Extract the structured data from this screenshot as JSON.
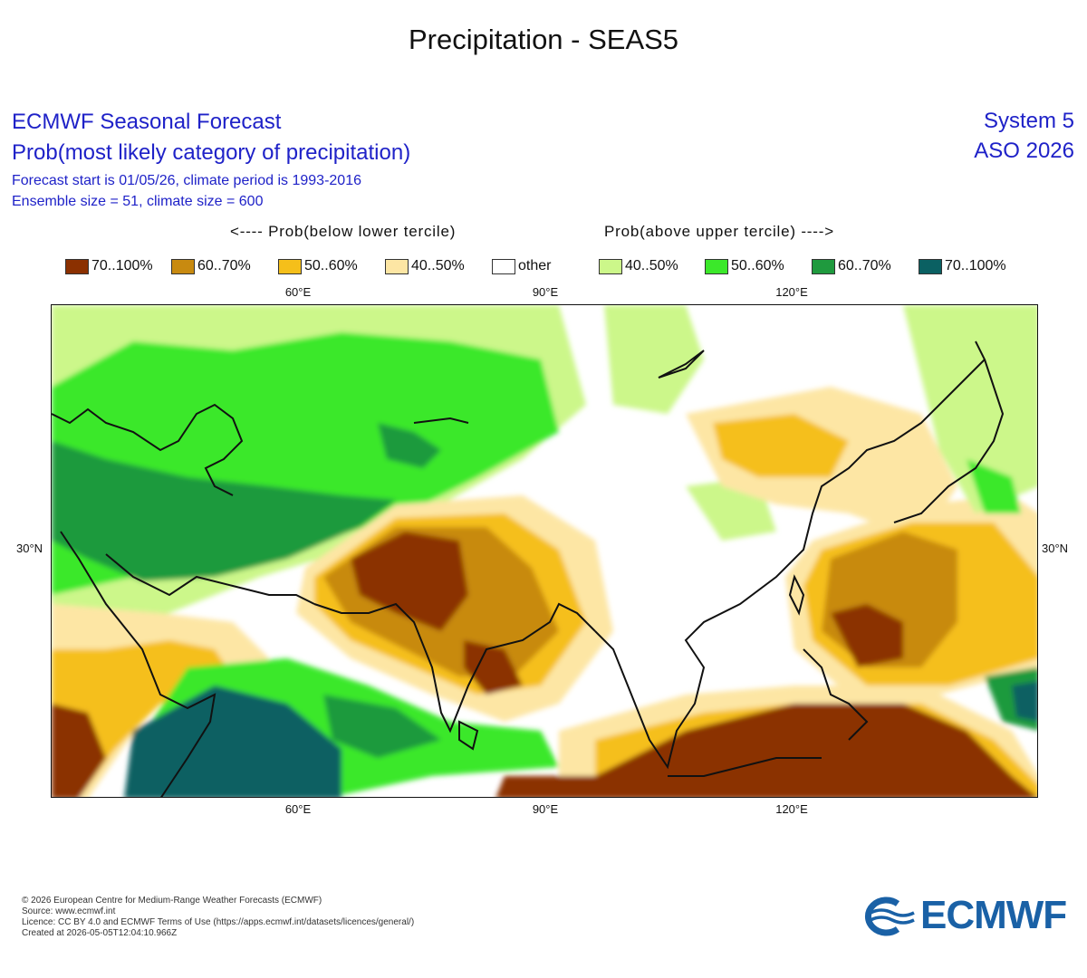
{
  "title": "Precipitation - SEAS5",
  "header": {
    "line1": "ECMWF Seasonal Forecast",
    "line2": "Prob(most likely category of precipitation)",
    "line3": "Forecast start is 01/05/26, climate period is 1993-2016",
    "line4": "Ensemble size = 51, climate size = 600",
    "system": "System 5",
    "period": "ASO 2026"
  },
  "legend": {
    "below_title": "<---- Prob(below lower tercile)",
    "above_title": "Prob(above upper tercile) ---->",
    "items": [
      {
        "label": "70..100%",
        "color": "#8b3000"
      },
      {
        "label": "60..70%",
        "color": "#c88a10"
      },
      {
        "label": "50..60%",
        "color": "#f5bf1a"
      },
      {
        "label": "40..50%",
        "color": "#fde6a4"
      },
      {
        "label": "other",
        "color": "#ffffff"
      },
      {
        "label": "40..50%",
        "color": "#ccf78a"
      },
      {
        "label": "50..60%",
        "color": "#3be82a"
      },
      {
        "label": "60..70%",
        "color": "#1f9a3e"
      },
      {
        "label": "70..100%",
        "color": "#0a6062"
      }
    ]
  },
  "axes": {
    "lon_top": [
      "60°E",
      "90°E",
      "120°E"
    ],
    "lon_bottom": [
      "60°E",
      "90°E",
      "120°E"
    ],
    "lat_left": "30°N",
    "lat_right": "30°N"
  },
  "footer": {
    "copyright": "© 2026 European Centre for Medium-Range Weather Forecasts (ECMWF)",
    "source": "Source: www.ecmwf.int",
    "licence": "Licence: CC BY 4.0 and ECMWF Terms of Use (https://apps.ecmwf.int/datasets/licences/general/)",
    "created": "Created at 2026-05-05T12:04:10.966Z"
  },
  "logo": {
    "text": "ECMWF",
    "color": "#1a61a6"
  }
}
